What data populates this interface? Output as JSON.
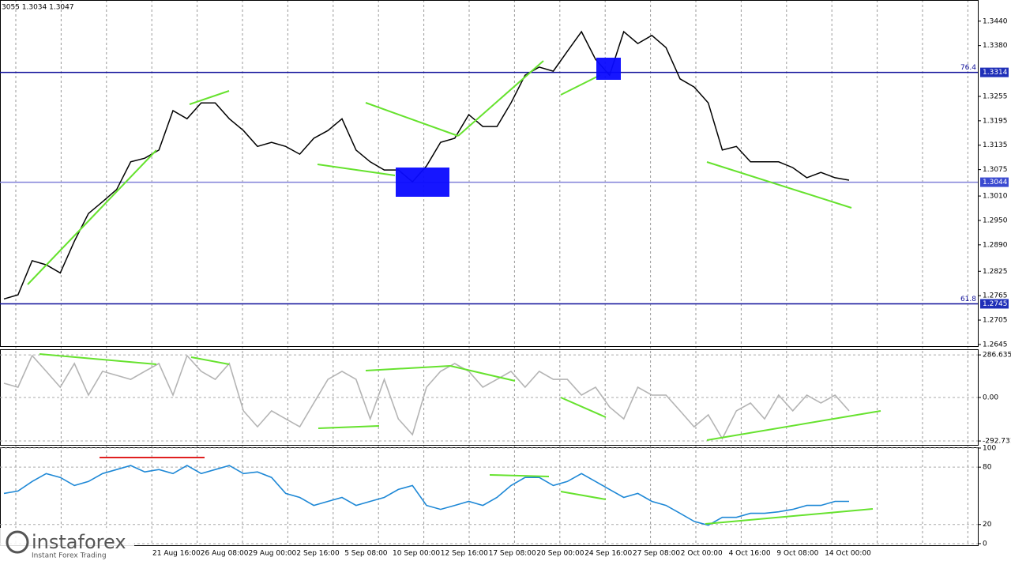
{
  "header_text": "3055 1.3034 1.3047",
  "watermark": {
    "brand": "instaforex",
    "tagline": "Instant Forex Trading"
  },
  "chart_data": [
    {
      "type": "line",
      "color": "#000000",
      "values": [
        1.2757,
        1.2767,
        1.2851,
        1.2841,
        1.2821,
        1.2899,
        1.2967,
        1.2996,
        1.3026,
        1.3094,
        1.3103,
        1.3123,
        1.322,
        1.32,
        1.3239,
        1.3239,
        1.32,
        1.3171,
        1.3132,
        1.3142,
        1.3132,
        1.3113,
        1.3152,
        1.3171,
        1.32,
        1.3123,
        1.3094,
        1.3074,
        1.3074,
        1.3045,
        1.3084,
        1.3142,
        1.3152,
        1.321,
        1.3181,
        1.3181,
        1.3239,
        1.3307,
        1.3327,
        1.3317,
        1.3366,
        1.3414,
        1.3346,
        1.3307,
        1.3414,
        1.3385,
        1.3405,
        1.3375,
        1.3298,
        1.3278,
        1.3239,
        1.3123,
        1.3132,
        1.3094,
        1.3094,
        1.3094,
        1.308,
        1.3055,
        1.3068,
        1.3055,
        1.3049
      ],
      "ylim": [
        1.2641,
        1.3492
      ],
      "yticks": [
        {
          "value": 1.344,
          "label": "1.3440"
        },
        {
          "value": 1.338,
          "label": "1.3380"
        },
        1.3255,
        1.3195,
        1.3135,
        1.3075,
        {
          "value": 1.301,
          "label": "1.3010"
        },
        {
          "value": 1.295,
          "label": "1.2950"
        },
        {
          "value": 1.289,
          "label": "1.2890"
        },
        1.2825,
        1.2765,
        1.2705,
        1.2645
      ],
      "levels": [
        {
          "value": 1.3314,
          "label": "1.3314",
          "fib": "76.4",
          "color": "#10109a"
        },
        {
          "value": 1.3044,
          "label": "1.3044",
          "color": "#8080d8"
        },
        {
          "value": 1.2745,
          "label": "1.2745",
          "fib": "61.8",
          "color": "#10109a"
        }
      ]
    },
    {
      "type": "line",
      "color": "#b4b4b4",
      "values": [
        96,
        69,
        282,
        176,
        69,
        229,
        16,
        176,
        149,
        122,
        176,
        229,
        16,
        282,
        176,
        122,
        229,
        -90,
        -197,
        -90,
        -144,
        -197,
        -37,
        122,
        176,
        122,
        -144,
        122,
        -144,
        -250,
        69,
        176,
        229,
        176,
        69,
        122,
        176,
        69,
        176,
        122,
        122,
        16,
        69,
        -64,
        -144,
        69,
        16,
        16,
        -90,
        -197,
        -117,
        -277,
        -90,
        -37,
        -144,
        16,
        -90,
        16,
        -37,
        16,
        -90
      ],
      "ylim": [
        -319,
        324.5
      ],
      "yticks": [
        286.6354,
        {
          "value": 0,
          "label": "0.00"
        },
        -292.731
      ]
    },
    {
      "type": "line",
      "color": "#1e88d6",
      "values": [
        52.5,
        55,
        65,
        73.3,
        69.2,
        60.8,
        65,
        73.3,
        77.5,
        81.7,
        75,
        77.5,
        73.3,
        81.7,
        73.3,
        77.5,
        81.7,
        73.3,
        75,
        69.2,
        52.5,
        48.3,
        40,
        44.2,
        48.3,
        40,
        44.2,
        48.3,
        56.7,
        60.8,
        40,
        35.8,
        40,
        44.2,
        40,
        48.3,
        60.8,
        69.2,
        69.2,
        60.8,
        65,
        73.3,
        65,
        56.7,
        48.3,
        52.5,
        44.2,
        40,
        31.7,
        23.3,
        19.2,
        27.5,
        27.5,
        31.7,
        31.7,
        33.3,
        35.8,
        40,
        40,
        44.2,
        44.2
      ],
      "ylim": [
        -1.7,
        100.8
      ],
      "yticks": [
        100,
        80,
        20,
        0
      ],
      "x_labels": [
        "21 Aug 16:00",
        "26 Aug 08:00",
        "29 Aug 00:00",
        "2 Sep 16:00",
        "5 Sep 08:00",
        "10 Sep 00:00",
        "12 Sep 16:00",
        "17 Sep 08:00",
        "20 Sep 00:00",
        "24 Sep 16:00",
        "27 Sep 08:00",
        "2 Oct 00:00",
        "4 Oct 16:00",
        "9 Oct 08:00",
        "14 Oct 00:00"
      ]
    }
  ]
}
